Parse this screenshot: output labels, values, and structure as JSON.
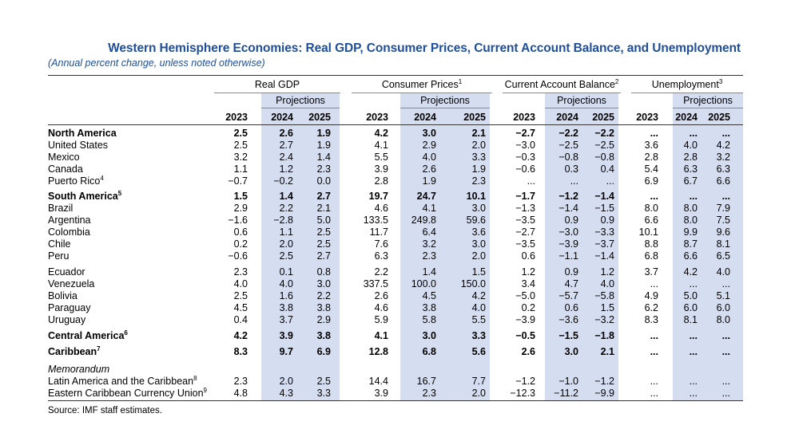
{
  "title": "Western Hemisphere Economies: Real GDP, Consumer Prices, Current Account Balance, and Unemployment",
  "subtitle": "(Annual percent change, unless noted otherwise)",
  "groups": [
    {
      "label": "Real GDP",
      "note": ""
    },
    {
      "label": "Consumer Prices",
      "note": "1"
    },
    {
      "label": "Current Account Balance",
      "note": "2"
    },
    {
      "label": "Unemployment",
      "note": "3"
    }
  ],
  "projections_label": "Projections",
  "years": [
    "2023",
    "2024",
    "2025"
  ],
  "rows": [
    {
      "label": "North America",
      "note": "",
      "bold": true,
      "values": [
        "2.5",
        "2.6",
        "1.9",
        "4.2",
        "3.0",
        "2.1",
        "−2.7",
        "−2.2",
        "−2.2",
        "...",
        "...",
        "..."
      ]
    },
    {
      "label": "United States",
      "note": "",
      "bold": false,
      "values": [
        "2.5",
        "2.7",
        "1.9",
        "4.1",
        "2.9",
        "2.0",
        "−3.0",
        "−2.5",
        "−2.5",
        "3.6",
        "4.0",
        "4.2"
      ]
    },
    {
      "label": "Mexico",
      "note": "",
      "bold": false,
      "values": [
        "3.2",
        "2.4",
        "1.4",
        "5.5",
        "4.0",
        "3.3",
        "−0.3",
        "−0.8",
        "−0.8",
        "2.8",
        "2.8",
        "3.2"
      ]
    },
    {
      "label": "Canada",
      "note": "",
      "bold": false,
      "values": [
        "1.1",
        "1.2",
        "2.3",
        "3.9",
        "2.6",
        "1.9",
        "−0.6",
        "0.3",
        "0.4",
        "5.4",
        "6.3",
        "6.3"
      ]
    },
    {
      "label": "Puerto Rico",
      "note": "4",
      "bold": false,
      "values": [
        "−0.7",
        "−0.2",
        "0.0",
        "2.8",
        "1.9",
        "2.3",
        "...",
        "...",
        "...",
        "6.9",
        "6.7",
        "6.6"
      ]
    },
    {
      "label": "South America",
      "note": "5",
      "bold": true,
      "values": [
        "1.5",
        "1.4",
        "2.7",
        "19.7",
        "24.7",
        "10.1",
        "−1.7",
        "−1.2",
        "−1.4",
        "...",
        "...",
        "..."
      ]
    },
    {
      "label": "Brazil",
      "note": "",
      "bold": false,
      "values": [
        "2.9",
        "2.2",
        "2.1",
        "4.6",
        "4.1",
        "3.0",
        "−1.3",
        "−1.4",
        "−1.5",
        "8.0",
        "8.0",
        "7.9"
      ]
    },
    {
      "label": "Argentina",
      "note": "",
      "bold": false,
      "values": [
        "−1.6",
        "−2.8",
        "5.0",
        "133.5",
        "249.8",
        "59.6",
        "−3.5",
        "0.9",
        "0.9",
        "6.6",
        "8.0",
        "7.5"
      ]
    },
    {
      "label": "Colombia",
      "note": "",
      "bold": false,
      "values": [
        "0.6",
        "1.1",
        "2.5",
        "11.7",
        "6.4",
        "3.6",
        "−2.7",
        "−3.0",
        "−3.3",
        "10.1",
        "9.9",
        "9.6"
      ]
    },
    {
      "label": "Chile",
      "note": "",
      "bold": false,
      "values": [
        "0.2",
        "2.0",
        "2.5",
        "7.6",
        "3.2",
        "3.0",
        "−3.5",
        "−3.9",
        "−3.7",
        "8.8",
        "8.7",
        "8.1"
      ]
    },
    {
      "label": "Peru",
      "note": "",
      "bold": false,
      "values": [
        "−0.6",
        "2.5",
        "2.7",
        "6.3",
        "2.3",
        "2.0",
        "0.6",
        "−1.1",
        "−1.4",
        "6.8",
        "6.6",
        "6.5"
      ]
    },
    {
      "label": "Ecuador",
      "note": "",
      "bold": false,
      "values": [
        "2.3",
        "0.1",
        "0.8",
        "2.2",
        "1.4",
        "1.5",
        "1.2",
        "0.9",
        "1.2",
        "3.7",
        "4.2",
        "4.0"
      ]
    },
    {
      "label": "Venezuela",
      "note": "",
      "bold": false,
      "values": [
        "4.0",
        "4.0",
        "3.0",
        "337.5",
        "100.0",
        "150.0",
        "3.4",
        "4.7",
        "4.0",
        "...",
        "...",
        "..."
      ]
    },
    {
      "label": "Bolivia",
      "note": "",
      "bold": false,
      "values": [
        "2.5",
        "1.6",
        "2.2",
        "2.6",
        "4.5",
        "4.2",
        "−5.0",
        "−5.7",
        "−5.8",
        "4.9",
        "5.0",
        "5.1"
      ]
    },
    {
      "label": "Paraguay",
      "note": "",
      "bold": false,
      "values": [
        "4.5",
        "3.8",
        "3.8",
        "4.6",
        "3.8",
        "4.0",
        "0.2",
        "0.6",
        "1.5",
        "6.2",
        "6.0",
        "6.0"
      ]
    },
    {
      "label": "Uruguay",
      "note": "",
      "bold": false,
      "values": [
        "0.4",
        "3.7",
        "2.9",
        "5.9",
        "5.8",
        "5.5",
        "−3.9",
        "−3.6",
        "−3.2",
        "8.3",
        "8.1",
        "8.0"
      ]
    },
    {
      "label": "Central America",
      "note": "6",
      "bold": true,
      "values": [
        "4.2",
        "3.9",
        "3.8",
        "4.1",
        "3.0",
        "3.3",
        "−0.5",
        "−1.5",
        "−1.8",
        "...",
        "...",
        "..."
      ]
    },
    {
      "label": "Caribbean",
      "note": "7",
      "bold": true,
      "values": [
        "8.3",
        "9.7",
        "6.9",
        "12.8",
        "6.8",
        "5.6",
        "2.6",
        "3.0",
        "2.1",
        "...",
        "...",
        "..."
      ]
    },
    {
      "label": "Memorandum",
      "note": "",
      "bold": false,
      "memo": true,
      "values": []
    },
    {
      "label": "Latin America and the Caribbean",
      "note": "8",
      "bold": false,
      "values": [
        "2.3",
        "2.0",
        "2.5",
        "14.4",
        "16.7",
        "7.7",
        "−1.2",
        "−1.0",
        "−1.2",
        "...",
        "...",
        "..."
      ]
    },
    {
      "label": "Eastern Caribbean Currency Union",
      "note": "9",
      "bold": false,
      "values": [
        "4.8",
        "4.3",
        "3.3",
        "3.9",
        "2.3",
        "2.0",
        "−12.3",
        "−11.2",
        "−9.9",
        "...",
        "...",
        "..."
      ]
    }
  ],
  "source": "Source: IMF staff estimates.",
  "colors": {
    "title": "#1f4e9a",
    "shade": "#d5ddf0"
  }
}
